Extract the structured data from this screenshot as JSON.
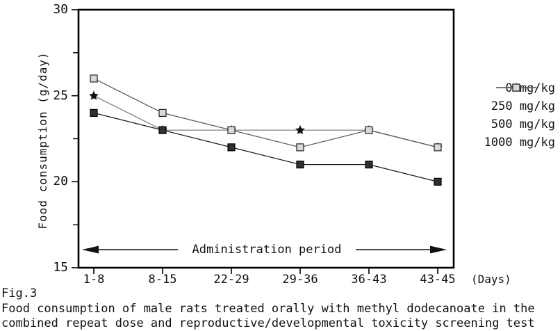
{
  "figure": {
    "fig_label": "Fig.3",
    "caption_line1": "Food consumption of male rats treated orally with methyl dodecanoate in the",
    "caption_line2": "combined repeat dose and reproductive/developmental toxicity screening test"
  },
  "chart_data": {
    "type": "line",
    "title": "",
    "ylabel": "Food consumption (g/day)",
    "xaxis_unit": "(Days)",
    "annotation": "Administration period",
    "categories": [
      "1-8",
      "8-15",
      "22-29",
      "29-36",
      "36-43",
      "43-45"
    ],
    "series": [
      {
        "name": "0 mg/kg",
        "values": [
          24,
          23,
          22,
          21,
          21,
          20
        ],
        "marker": "filled-square",
        "line_color": "#1a1a1a",
        "marker_fill": "#2f2f2f",
        "marker_stroke": "#000000"
      },
      {
        "name": "250 mg/kg",
        "values": [
          25,
          23,
          23,
          23,
          23,
          22
        ],
        "marker": "diamond",
        "line_color": "#9a9a9a",
        "marker_fill": "#b5b5b5",
        "marker_stroke": "#555555"
      },
      {
        "name": "500 mg/kg",
        "values": [
          25,
          23,
          23,
          23,
          23,
          22
        ],
        "marker": "star",
        "line_color": "#8c8c8c",
        "marker_fill": "#111111",
        "marker_stroke": "#111111"
      },
      {
        "name": "1000 mg/kg",
        "values": [
          26,
          24,
          23,
          22,
          23,
          22
        ],
        "marker": "open-square",
        "line_color": "#595959",
        "marker_fill": "#d9d9d9",
        "marker_stroke": "#222222"
      }
    ],
    "ylim": [
      15,
      30
    ],
    "yticks": [
      30,
      25,
      20,
      15
    ],
    "yticks_minor": [
      27.5,
      22.5,
      17.5
    ],
    "grid": false,
    "legend_position": "right",
    "axis_color": "#000000"
  }
}
